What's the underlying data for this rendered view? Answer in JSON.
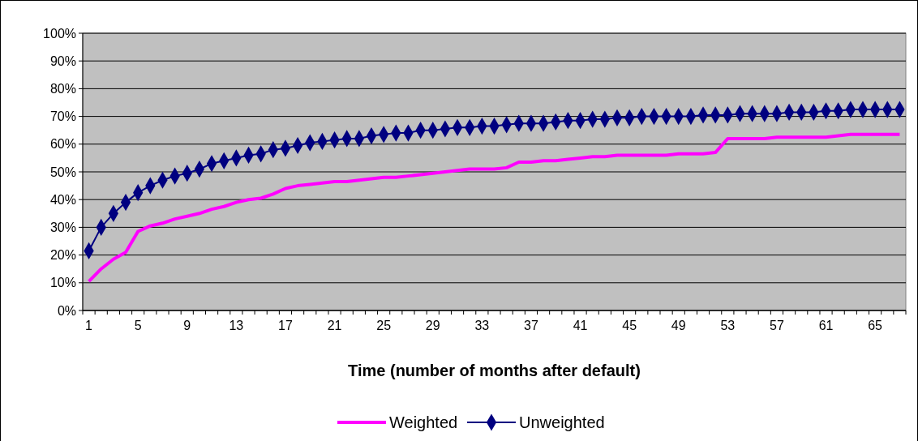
{
  "chart_data": {
    "type": "line",
    "xlabel": "Time (number of months after default)",
    "categories": [
      "1",
      null,
      null,
      null,
      "5",
      null,
      null,
      null,
      "9",
      null,
      null,
      null,
      "13",
      null,
      null,
      null,
      "17",
      null,
      null,
      null,
      "21",
      null,
      null,
      null,
      "25",
      null,
      null,
      null,
      "29",
      null,
      null,
      null,
      "33",
      null,
      null,
      null,
      "37",
      null,
      null,
      null,
      "41",
      null,
      null,
      null,
      "45",
      null,
      null,
      null,
      "49",
      null,
      null,
      null,
      "53",
      null,
      null,
      null,
      "57",
      null,
      null,
      null,
      "61",
      null,
      null,
      null,
      "65",
      null,
      null
    ],
    "ylim": [
      0,
      100
    ],
    "yticks": [
      {
        "value": 0,
        "label": "0%"
      },
      {
        "value": 10,
        "label": "10%"
      },
      {
        "value": 20,
        "label": "20%"
      },
      {
        "value": 30,
        "label": "30%"
      },
      {
        "value": 40,
        "label": "40%"
      },
      {
        "value": 50,
        "label": "50%"
      },
      {
        "value": 60,
        "label": "60%"
      },
      {
        "value": 70,
        "label": "70%"
      },
      {
        "value": 80,
        "label": "80%"
      },
      {
        "value": 90,
        "label": "90%"
      },
      {
        "value": 100,
        "label": "100%"
      }
    ],
    "grid": "y",
    "legend": "bottom",
    "series": [
      {
        "name": "Weighted",
        "color": "#ff00ff",
        "marker": "none",
        "values": [
          10.5,
          15,
          18.5,
          21,
          28.5,
          30.5,
          31.5,
          33,
          34,
          35,
          36.5,
          37.5,
          39,
          40,
          40.5,
          42,
          44,
          45,
          45.5,
          46,
          46.5,
          46.5,
          47,
          47.5,
          48,
          48,
          48.5,
          49,
          49.5,
          50,
          50.5,
          51,
          51,
          51,
          51.5,
          53.5,
          53.5,
          54,
          54,
          54.5,
          55,
          55.5,
          55.5,
          56,
          56,
          56,
          56,
          56,
          56.5,
          56.5,
          56.5,
          57,
          62,
          62,
          62,
          62,
          62.5,
          62.5,
          62.5,
          62.5,
          62.5,
          63,
          63.5,
          63.5,
          63.5,
          63.5,
          63.5
        ]
      },
      {
        "name": "Unweighted",
        "color": "#000080",
        "marker": "diamond",
        "values": [
          21.5,
          30,
          35,
          39,
          42.5,
          45,
          47,
          48.5,
          49.5,
          51,
          53,
          54,
          55,
          56,
          56.5,
          58,
          58.5,
          59.5,
          60.5,
          61,
          61.5,
          62,
          62,
          63,
          63.5,
          64,
          64,
          65,
          65,
          65.5,
          66,
          66,
          66.5,
          66.5,
          67,
          67.5,
          67.5,
          67.5,
          68,
          68.5,
          68.5,
          69,
          69,
          69.5,
          69.5,
          70,
          70,
          70,
          70,
          70,
          70.5,
          70.5,
          70.5,
          71,
          71,
          71,
          71,
          71.5,
          71.5,
          71.5,
          72,
          72,
          72.5,
          72.5,
          72.5,
          72.5,
          72.5
        ]
      }
    ]
  }
}
